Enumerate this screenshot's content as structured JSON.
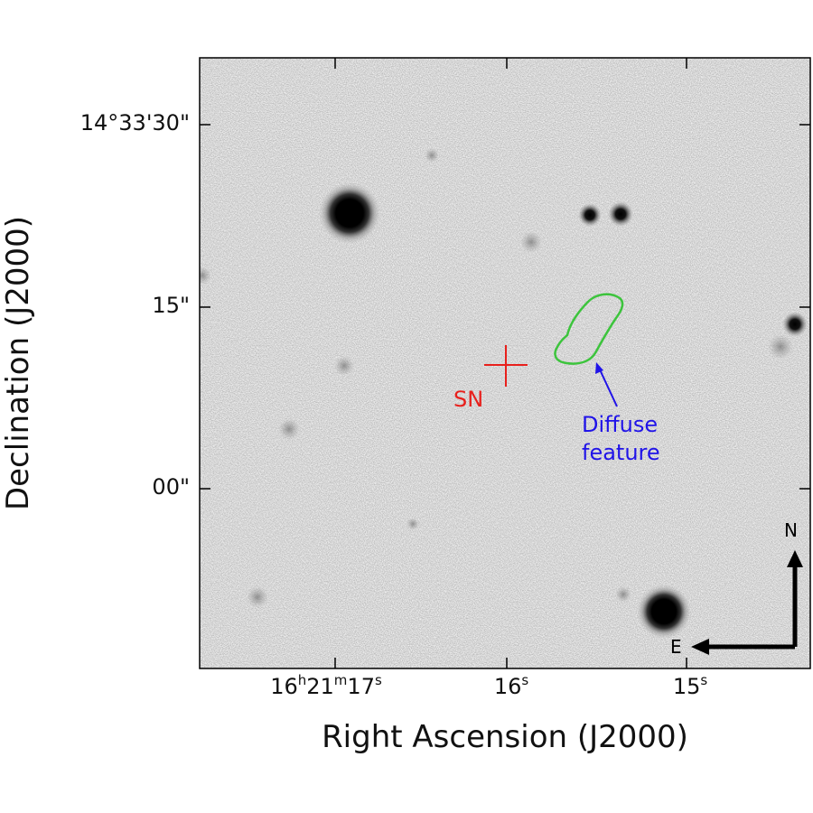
{
  "axes": {
    "xlabel": "Right Ascension (J2000)",
    "ylabel": "Declination (J2000)",
    "xticks": [
      {
        "base": "16",
        "u1": "h",
        "mid": "21",
        "u2": "m",
        "end": "17",
        "u3": "s"
      },
      {
        "base": "16",
        "u1": "s",
        "mid": "",
        "u2": "",
        "end": "",
        "u3": ""
      },
      {
        "base": "15",
        "u1": "s",
        "mid": "",
        "u2": "",
        "end": "",
        "u3": ""
      }
    ],
    "yticks": [
      "14°33'30\"",
      "15\"",
      "00\""
    ]
  },
  "annotations": {
    "sn_label": "SN",
    "feature_line1": "Diffuse",
    "feature_line2": "feature"
  },
  "compass": {
    "north": "N",
    "east": "E"
  },
  "colors": {
    "sn": "#e8201c",
    "feature_text": "#2013e8",
    "contour": "#3cc43c",
    "compass": "#000000"
  }
}
